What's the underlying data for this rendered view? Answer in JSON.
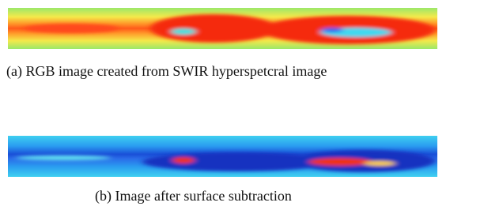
{
  "figures": [
    {
      "caption": "(a) RGB image created from SWIR hyperspetcral image"
    },
    {
      "caption": "(b) Image after surface subtraction"
    }
  ]
}
